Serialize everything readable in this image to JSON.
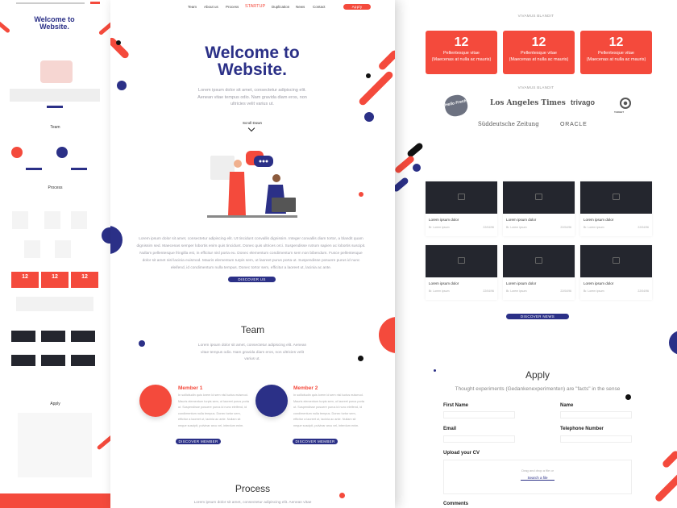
{
  "nav": {
    "items": [
      "Team",
      "About us",
      "Process",
      "STARTUP",
      "Duplication",
      "News",
      "Contact"
    ],
    "apply": "Apply"
  },
  "hero": {
    "title": "Welcome to Website.",
    "text": "Lorem ipsum dolor sit amet, consectetur adipiscing elit. Aenean vitae tempus odio. Nam gravida diam eros, non ultricies velit varius ut.",
    "scroll": "Scroll Down"
  },
  "about": {
    "text": "Lorem ipsum dolor sit amet, consectetur adipiscing elit. Ut tincidunt convallis dignissim. Integer convallis diam tortor, a blandit quam dignissim sed. Maecenas semper lobortis enim quis tincidunt. Donec quis ultrices orci. Suspendisse rutrum sapien ac lobortis suscipit. Nullam pellentesque fringilla est, in efficitur nisl porta eu. Donec elementum condimentum sem non bibendum. Fusce pellentesque dolor sit amet nisl lacinia euismod. Mauris elementum turpis sem, ut laoreet purus porta ut. Suspendisse posuere purus id nunc eleifend, id condimentum nulla tempus. Donec tortor sem, efficitur a laoreet ut, lacinia ac ante.",
    "button": "DISCOVER US"
  },
  "team": {
    "title": "Team",
    "text": "Lorem ipsum dolor sit amet, consectetur adipiscing elit. Aenean vitae tempus odio. Nam gravida diam eros, non ultricies velit varius ut.",
    "members": [
      {
        "name": "Member 1",
        "bio": "In sollicitudin quis lorem id sem nisl luctus euismod. Mauris elementum turpis sem, ut laoreet purus porta ut. Suspendisse posuere purus id nunc eleifend, id condimentum nulla tempus. Donec tortor sem, efficitur a laoreet ut, lacinia ac ante. Nullam sit neque suscipit, pulvinar arcu vel, interdum enim.",
        "button": "DISCOVER MEMBER"
      },
      {
        "name": "Member 2",
        "bio": "In sollicitudin quis lorem id sem nisl luctus euismod. Mauris elementum turpis sem, ut laoreet purus porta ut. Suspendisse posuere purus id nunc eleifend, id condimentum nulla tempus. Donec tortor sem, efficitur a laoreet ut, lacinia ac ante. Nullam sit neque suscipit, pulvinar arcu vel, interdum enim.",
        "button": "DISCOVER MEMBER"
      }
    ]
  },
  "process": {
    "title": "Process",
    "text": "Lorem ipsum dolor sit amet, consectetur adipiscing elit. Aenean vitae"
  },
  "stats": {
    "label": "VIVAMUS BLANDIT",
    "items": [
      {
        "value": "12",
        "line1": "Pellentesque vitae",
        "line2": "(Maecenas at nulla ac mauris)"
      },
      {
        "value": "12",
        "line1": "Pellentesque vitae",
        "line2": "(Maecenas at nulla ac mauris)"
      },
      {
        "value": "12",
        "line1": "Pellentesque vitae",
        "line2": "(Maecenas at nulla ac mauris)"
      }
    ]
  },
  "partners": {
    "label": "VIVAMUS BLANDIT",
    "logos": [
      "Hello Fresh",
      "Los Angeles Times",
      "trivago",
      "TARGET",
      "Süddeutsche Zeitung",
      "ORACLE"
    ]
  },
  "news": {
    "cards": [
      {
        "title": "Lorem ipsum dolor",
        "author": "Br. Lorem ipsum",
        "date": "22/04/96"
      },
      {
        "title": "Lorem ipsum dolor",
        "author": "Br. Lorem ipsum",
        "date": "22/04/96"
      },
      {
        "title": "Lorem ipsum dolor",
        "author": "Br. Lorem ipsum",
        "date": "22/04/96"
      },
      {
        "title": "Lorem ipsum dolor",
        "author": "Br. Lorem ipsum",
        "date": "22/04/96"
      },
      {
        "title": "Lorem ipsum dolor",
        "author": "Br. Lorem ipsum",
        "date": "22/04/96"
      },
      {
        "title": "Lorem ipsum dolor",
        "author": "Br. Lorem ipsum",
        "date": "22/04/96"
      }
    ],
    "button": "DISCOVER NEWS"
  },
  "apply": {
    "title": "Apply",
    "subtitle": "Thought experiments (Gedankenexperimenten) are \"facts\" in the sense",
    "first_name": "First Name",
    "name": "Name",
    "email": "Email",
    "phone": "Telephone Number",
    "upload": "Upload your CV",
    "drop": "Drag and drop a file or",
    "search": "Search a file",
    "comments": "Comments"
  },
  "colors": {
    "accent": "#f44a3c",
    "navy": "#2b3087"
  }
}
